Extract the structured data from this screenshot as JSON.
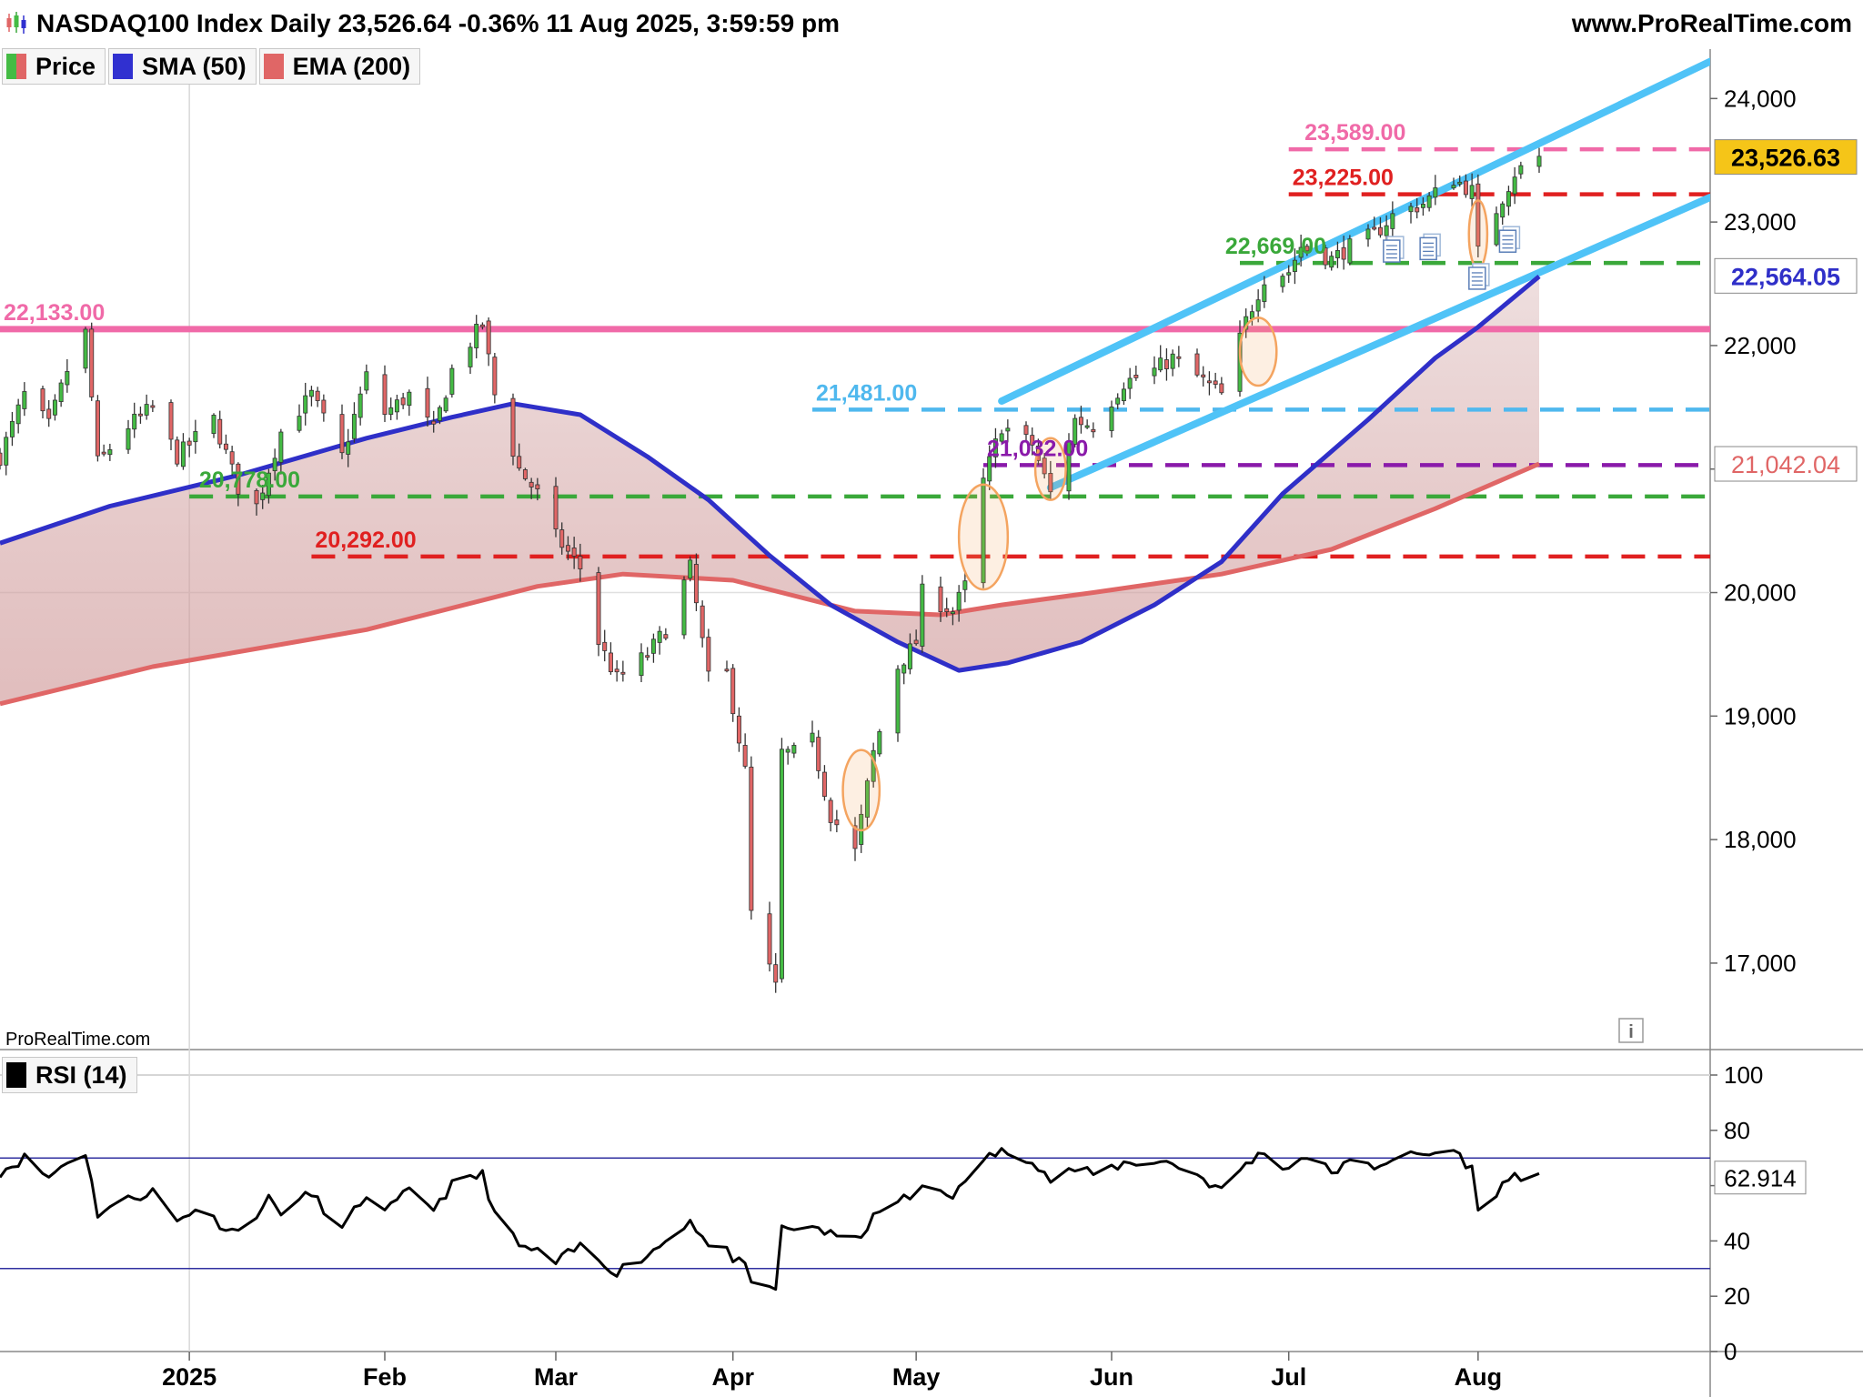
{
  "header": {
    "title": "NASDAQ100 Index Daily 23,526.64 -0.36% 11 Aug 2025, 3:59:59 pm",
    "site": "www.ProRealTime.com",
    "watermark": "ProRealTime.com",
    "info_icon": "info-icon",
    "logo_icon": "candlestick-logo-icon"
  },
  "legend": {
    "price": {
      "label": "Price",
      "color_up": "#44bb44",
      "color_down": "#e06666"
    },
    "sma": {
      "label": "SMA (50)",
      "color": "#3030d0"
    },
    "ema": {
      "label": "EMA (200)",
      "color": "#e06666"
    },
    "rsi": {
      "label": "RSI (14)",
      "color": "#000000"
    }
  },
  "colors": {
    "candle_up": "#44bb44",
    "candle_down": "#e06666",
    "sma": "#2f2fc8",
    "ema": "#e06666",
    "channel": "#4fc3f7",
    "highlight_ellipse": "#f4a460",
    "rsi_band": "#3030a0"
  },
  "chart_data": [
    {
      "type": "candlestick",
      "x_ticks": [
        "2025",
        "Feb",
        "Mar",
        "Apr",
        "May",
        "Jun",
        "Jul",
        "Aug"
      ],
      "x_tick_dates": [
        "2025-01-02",
        "2025-02-03",
        "2025-03-03",
        "2025-04-01",
        "2025-05-01",
        "2025-06-02",
        "2025-07-01",
        "2025-08-01"
      ],
      "x_range": [
        "2024-12-02",
        "2025-09-08"
      ],
      "y_ticks": [
        "17,000",
        "18,000",
        "19,000",
        "20,000",
        "21,000",
        "22,000",
        "23,000",
        "24,000"
      ],
      "y_tick_values": [
        17000,
        18000,
        19000,
        20000,
        21000,
        22000,
        23000,
        24000
      ],
      "ylim": [
        16300,
        24400
      ],
      "grid": false,
      "last_price": {
        "label": "23,526.63",
        "value": 23526.63
      },
      "sma_value": {
        "label": "22,564.05",
        "value": 22564.05
      },
      "ema_value": {
        "label": "21,042.04",
        "value": 21042.04
      },
      "ohlc_path": [
        [
          "2024-12-02",
          21100
        ],
        [
          "2024-12-06",
          21600
        ],
        [
          "2024-12-10",
          21350
        ],
        [
          "2024-12-13",
          21800
        ],
        [
          "2024-12-16",
          22100
        ],
        [
          "2024-12-18",
          21050
        ],
        [
          "2024-12-23",
          21350
        ],
        [
          "2024-12-27",
          21500
        ],
        [
          "2024-12-31",
          21100
        ],
        [
          "2025-01-06",
          21400
        ],
        [
          "2025-01-10",
          20850
        ],
        [
          "2025-01-13",
          20700
        ],
        [
          "2025-01-17",
          21300
        ],
        [
          "2025-01-22",
          21600
        ],
        [
          "2025-01-27",
          21100
        ],
        [
          "2025-01-31",
          21750
        ],
        [
          "2025-02-03",
          21450
        ],
        [
          "2025-02-07",
          21600
        ],
        [
          "2025-02-11",
          21300
        ],
        [
          "2025-02-14",
          21800
        ],
        [
          "2025-02-19",
          22180
        ],
        [
          "2025-02-21",
          21600
        ],
        [
          "2025-02-25",
          21000
        ],
        [
          "2025-02-28",
          20800
        ],
        [
          "2025-03-03",
          20450
        ],
        [
          "2025-03-07",
          20200
        ],
        [
          "2025-03-10",
          19600
        ],
        [
          "2025-03-13",
          19300
        ],
        [
          "2025-03-18",
          19500
        ],
        [
          "2025-03-21",
          19700
        ],
        [
          "2025-03-25",
          20200
        ],
        [
          "2025-03-28",
          19300
        ],
        [
          "2025-03-31",
          19350
        ],
        [
          "2025-04-03",
          18550
        ],
        [
          "2025-04-04",
          17400
        ],
        [
          "2025-04-08",
          16800
        ],
        [
          "2025-04-09",
          18700
        ],
        [
          "2025-04-11",
          18700
        ],
        [
          "2025-04-14",
          18800
        ],
        [
          "2025-04-17",
          18200
        ],
        [
          "2025-04-21",
          17900
        ],
        [
          "2025-04-24",
          18700
        ],
        [
          "2025-04-28",
          19400
        ],
        [
          "2025-05-01",
          19600
        ],
        [
          "2025-05-02",
          20000
        ],
        [
          "2025-05-07",
          19850
        ],
        [
          "2025-05-09",
          20050
        ],
        [
          "2025-05-12",
          20900
        ],
        [
          "2025-05-15",
          21350
        ],
        [
          "2025-05-20",
          21200
        ],
        [
          "2025-05-23",
          20800
        ],
        [
          "2025-05-27",
          21400
        ],
        [
          "2025-05-30",
          21350
        ],
        [
          "2025-06-04",
          21700
        ],
        [
          "2025-06-09",
          21800
        ],
        [
          "2025-06-12",
          21900
        ],
        [
          "2025-06-16",
          21750
        ],
        [
          "2025-06-20",
          21600
        ],
        [
          "2025-06-24",
          22200
        ],
        [
          "2025-06-27",
          22550
        ],
        [
          "2025-07-01",
          22600
        ],
        [
          "2025-07-03",
          22800
        ],
        [
          "2025-07-08",
          22700
        ],
        [
          "2025-07-11",
          22800
        ],
        [
          "2025-07-15",
          22900
        ],
        [
          "2025-07-18",
          23050
        ],
        [
          "2025-07-23",
          23150
        ],
        [
          "2025-07-28",
          23350
        ],
        [
          "2025-07-31",
          23250
        ],
        [
          "2025-08-01",
          22750
        ],
        [
          "2025-08-04",
          23100
        ],
        [
          "2025-08-07",
          23400
        ],
        [
          "2025-08-11",
          23526
        ]
      ],
      "overlays": {
        "sma50_path": [
          [
            "2024-12-02",
            20400
          ],
          [
            "2024-12-20",
            20700
          ],
          [
            "2025-01-10",
            20950
          ],
          [
            "2025-01-31",
            21250
          ],
          [
            "2025-02-14",
            21420
          ],
          [
            "2025-02-24",
            21530
          ],
          [
            "2025-03-07",
            21440
          ],
          [
            "2025-03-18",
            21100
          ],
          [
            "2025-03-28",
            20750
          ],
          [
            "2025-04-07",
            20300
          ],
          [
            "2025-04-17",
            19900
          ],
          [
            "2025-04-28",
            19600
          ],
          [
            "2025-05-08",
            19370
          ],
          [
            "2025-05-16",
            19430
          ],
          [
            "2025-05-28",
            19600
          ],
          [
            "2025-06-09",
            19900
          ],
          [
            "2025-06-20",
            20250
          ],
          [
            "2025-06-30",
            20800
          ],
          [
            "2025-07-14",
            21400
          ],
          [
            "2025-07-25",
            21900
          ],
          [
            "2025-08-01",
            22150
          ],
          [
            "2025-08-11",
            22560
          ]
        ],
        "ema200_path": [
          [
            "2024-12-02",
            19100
          ],
          [
            "2024-12-27",
            19400
          ],
          [
            "2025-01-31",
            19700
          ],
          [
            "2025-02-28",
            20050
          ],
          [
            "2025-03-14",
            20150
          ],
          [
            "2025-04-01",
            20100
          ],
          [
            "2025-04-21",
            19850
          ],
          [
            "2025-05-05",
            19820
          ],
          [
            "2025-05-15",
            19900
          ],
          [
            "2025-05-30",
            20000
          ],
          [
            "2025-06-20",
            20150
          ],
          [
            "2025-07-08",
            20350
          ],
          [
            "2025-07-25",
            20680
          ],
          [
            "2025-08-11",
            21042
          ]
        ],
        "channel_upper": [
          [
            "2025-05-15",
            21550
          ],
          [
            "2025-09-08",
            24300
          ]
        ],
        "channel_lower": [
          [
            "2025-05-23",
            20850
          ],
          [
            "2025-09-08",
            23200
          ]
        ],
        "ellipses": [
          {
            "date": "2025-04-22",
            "price": 18400,
            "days": 3,
            "span": 650
          },
          {
            "date": "2025-05-12",
            "price": 20450,
            "days": 4,
            "span": 850
          },
          {
            "date": "2025-05-23",
            "price": 21000,
            "days": 2.5,
            "span": 500
          },
          {
            "date": "2025-06-26",
            "price": 21950,
            "days": 3,
            "span": 550
          },
          {
            "date": "2025-08-01",
            "price": 22900,
            "days": 1.5,
            "span": 550
          }
        ],
        "event_icons": [
          {
            "date": "2025-07-18",
            "price": 22750
          },
          {
            "date": "2025-07-24",
            "price": 22770
          },
          {
            "date": "2025-08-01",
            "price": 22530
          },
          {
            "date": "2025-08-06",
            "price": 22830
          }
        ]
      },
      "levels": [
        {
          "label": "23,589.00",
          "value": 23589,
          "color": "#f06aa8",
          "style": "dashed",
          "from": "2025-07-01",
          "label_at": "2025-07-03"
        },
        {
          "label": "23,225.00",
          "value": 23225,
          "color": "#e02020",
          "style": "dashed",
          "from": "2025-07-01",
          "label_at": "2025-07-01"
        },
        {
          "label": "22,669.00",
          "value": 22669,
          "color": "#3aa83a",
          "style": "dashed",
          "from": "2025-06-23",
          "label_at": "2025-06-20"
        },
        {
          "label": "22,133.00",
          "value": 22133,
          "color": "#f06aa8",
          "style": "solid",
          "from": "2024-12-02",
          "label_at": "2024-12-02"
        },
        {
          "label": "21,481.00",
          "value": 21481,
          "color": "#4fb8ee",
          "style": "dashed",
          "from": "2025-04-14",
          "label_at": "2025-04-14"
        },
        {
          "label": "21,032.00",
          "value": 21032,
          "color": "#8a1aaa",
          "style": "dashed",
          "from": "2025-05-12",
          "label_at": "2025-05-12"
        },
        {
          "label": "20,778.00",
          "value": 20778,
          "color": "#3aa83a",
          "style": "dashed",
          "from": "2025-01-02",
          "label_at": "2025-01-03"
        },
        {
          "label": "20,292.00",
          "value": 20292,
          "color": "#e02020",
          "style": "dashed",
          "from": "2025-01-22",
          "label_at": "2025-01-22"
        }
      ]
    },
    {
      "type": "line",
      "name": "RSI (14)",
      "y_ticks": [
        "0",
        "20",
        "40",
        "60",
        "80",
        "100"
      ],
      "y_tick_values": [
        0,
        20,
        40,
        60,
        80,
        100
      ],
      "ylim": [
        0,
        100
      ],
      "bands": [
        30,
        70
      ],
      "last_value": {
        "label": "62.914",
        "value": 62.914
      },
      "rsi_path": [
        [
          "2024-12-02",
          65
        ],
        [
          "2024-12-06",
          70
        ],
        [
          "2024-12-10",
          63
        ],
        [
          "2024-12-13",
          69
        ],
        [
          "2024-12-16",
          72
        ],
        [
          "2024-12-18",
          50
        ],
        [
          "2024-12-23",
          55
        ],
        [
          "2024-12-27",
          58
        ],
        [
          "2024-12-31",
          47
        ],
        [
          "2025-01-03",
          52
        ],
        [
          "2025-01-08",
          45
        ],
        [
          "2025-01-10",
          43
        ],
        [
          "2025-01-15",
          55
        ],
        [
          "2025-01-17",
          51
        ],
        [
          "2025-01-22",
          57
        ],
        [
          "2025-01-27",
          44
        ],
        [
          "2025-01-31",
          57
        ],
        [
          "2025-02-03",
          50
        ],
        [
          "2025-02-07",
          58
        ],
        [
          "2025-02-11",
          52
        ],
        [
          "2025-02-14",
          60
        ],
        [
          "2025-02-19",
          64
        ],
        [
          "2025-02-21",
          50
        ],
        [
          "2025-02-25",
          38
        ],
        [
          "2025-02-28",
          36
        ],
        [
          "2025-03-03",
          32
        ],
        [
          "2025-03-07",
          38
        ],
        [
          "2025-03-10",
          33
        ],
        [
          "2025-03-13",
          29
        ],
        [
          "2025-03-18",
          35
        ],
        [
          "2025-03-21",
          40
        ],
        [
          "2025-03-25",
          48
        ],
        [
          "2025-03-28",
          38
        ],
        [
          "2025-03-31",
          36
        ],
        [
          "2025-04-03",
          30
        ],
        [
          "2025-04-04",
          24
        ],
        [
          "2025-04-08",
          23
        ],
        [
          "2025-04-09",
          44
        ],
        [
          "2025-04-11",
          44
        ],
        [
          "2025-04-14",
          46
        ],
        [
          "2025-04-17",
          42
        ],
        [
          "2025-04-21",
          40
        ],
        [
          "2025-04-24",
          48
        ],
        [
          "2025-04-28",
          55
        ],
        [
          "2025-05-01",
          56
        ],
        [
          "2025-05-02",
          60
        ],
        [
          "2025-05-07",
          57
        ],
        [
          "2025-05-09",
          60
        ],
        [
          "2025-05-12",
          70
        ],
        [
          "2025-05-15",
          72
        ],
        [
          "2025-05-20",
          70
        ],
        [
          "2025-05-23",
          62
        ],
        [
          "2025-05-27",
          66
        ],
        [
          "2025-05-30",
          64
        ],
        [
          "2025-06-04",
          68
        ],
        [
          "2025-06-09",
          69
        ],
        [
          "2025-06-12",
          68
        ],
        [
          "2025-06-16",
          64
        ],
        [
          "2025-06-20",
          58
        ],
        [
          "2025-06-24",
          68
        ],
        [
          "2025-06-27",
          72
        ],
        [
          "2025-07-01",
          66
        ],
        [
          "2025-07-03",
          71
        ],
        [
          "2025-07-08",
          65
        ],
        [
          "2025-07-11",
          68
        ],
        [
          "2025-07-15",
          67
        ],
        [
          "2025-07-18",
          70
        ],
        [
          "2025-07-23",
          71
        ],
        [
          "2025-07-28",
          73
        ],
        [
          "2025-07-31",
          66
        ],
        [
          "2025-08-01",
          50
        ],
        [
          "2025-08-04",
          58
        ],
        [
          "2025-08-07",
          64
        ],
        [
          "2025-08-11",
          63
        ]
      ]
    }
  ]
}
